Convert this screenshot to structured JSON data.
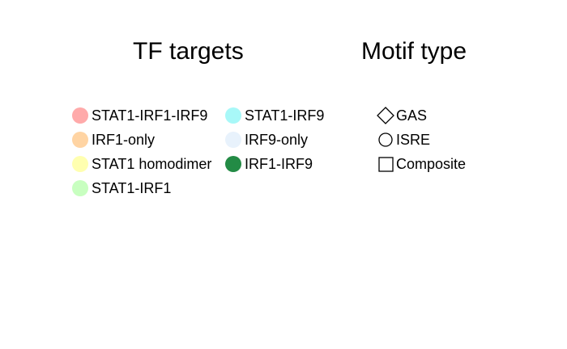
{
  "tf_legend": {
    "title": "TF targets",
    "columns": [
      [
        {
          "label": "STAT1-IRF1-IRF9",
          "color": "#FFAAAA"
        },
        {
          "label": "IRF1-only",
          "color": "#FFD4A3"
        },
        {
          "label": "STAT1 homodimer",
          "color": "#FFFFB0"
        },
        {
          "label": "STAT1-IRF1",
          "color": "#C8FFC0"
        }
      ],
      [
        {
          "label": "STAT1-IRF9",
          "color": "#A8F8F8"
        },
        {
          "label": "IRF9-only",
          "color": "#E8F2FC"
        },
        {
          "label": "IRF1-IRF9",
          "color": "#238B45"
        }
      ]
    ]
  },
  "motif_legend": {
    "title": "Motif type",
    "items": [
      {
        "label": "GAS",
        "shape": "diamond"
      },
      {
        "label": "ISRE",
        "shape": "circle"
      },
      {
        "label": "Composite",
        "shape": "square"
      }
    ]
  }
}
